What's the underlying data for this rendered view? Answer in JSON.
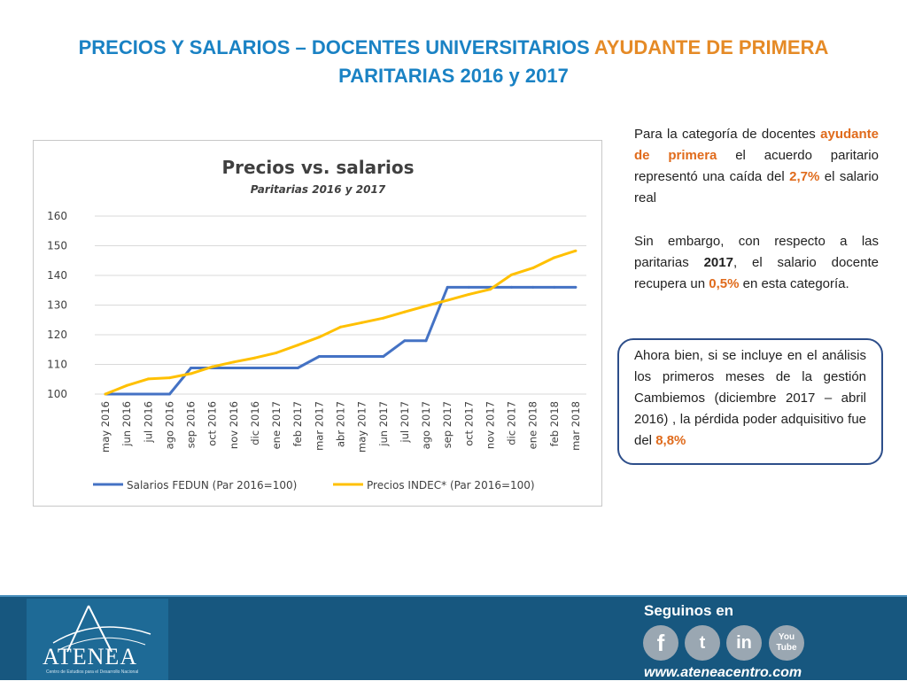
{
  "slide": {
    "title_main": "PRECIOS Y SALARIOS – DOCENTES UNIVERSITARIOS",
    "title_accent": "AYUDANTE DE PRIMERA",
    "title_line2": "PARITARIAS 2016 y 2017"
  },
  "paragraph1": {
    "t1": "Para la categoría de docentes",
    "t2": "ayudante de primera",
    "t3": "el acuerdo paritario representó una caída del",
    "t4": "2,7%",
    "t5": "el salario real"
  },
  "paragraph2": {
    "t1": "Sin embargo, con respecto a las paritarias",
    "t2": "2017",
    "t3": ", el salario docente recupera un",
    "t4": "0,5%",
    "t5": "en esta categoría."
  },
  "callout": {
    "t1": "Ahora bien, si se incluye en el análisis los primeros meses de la gestión Cambiemos (diciembre 2017 – abril 2016) , la pérdida poder adquisitivo fue del",
    "t2": "8,8%"
  },
  "footer": {
    "logo_text": "ATENEA",
    "logo_subtitle": "Centro de Estudios para el Desarrollo Nacional",
    "follow_label": "Seguinos en",
    "social_fb": "f",
    "social_tw": "t",
    "social_in": "in",
    "social_yt_1": "You",
    "social_yt_2": "Tube",
    "website": "www.ateneacentro.com"
  },
  "colors": {
    "title_blue": "#1a82c4",
    "title_orange": "#e58a26",
    "salarios_line": "#4472c4",
    "precios_line": "#ffc000",
    "footer_bg": "#17577f"
  },
  "chart_data": {
    "type": "line",
    "title": "Precios vs. salarios",
    "subtitle": "Paritarias 2016 y 2017",
    "categories": [
      "may 2016",
      "jun 2016",
      "jul 2016",
      "ago 2016",
      "sep 2016",
      "oct 2016",
      "nov 2016",
      "dic 2016",
      "ene 2017",
      "feb 2017",
      "mar 2017",
      "abr 2017",
      "may 2017",
      "jun 2017",
      "jul 2017",
      "ago 2017",
      "sep 2017",
      "oct 2017",
      "nov 2017",
      "dic 2017",
      "ene 2018",
      "feb 2018",
      "mar 2018"
    ],
    "yticks": [
      100,
      110,
      120,
      130,
      140,
      150,
      160
    ],
    "ylim": [
      100,
      160
    ],
    "grid": true,
    "legend_position": "bottom",
    "series": [
      {
        "name": "Salarios FEDUN (Par 2016=100)",
        "color": "#4472c4",
        "values": [
          100,
          100,
          100,
          100,
          108.8,
          108.8,
          108.8,
          108.8,
          108.8,
          108.8,
          112.7,
          112.7,
          112.7,
          112.7,
          118,
          118,
          136,
          136,
          136,
          136,
          136,
          136,
          136
        ]
      },
      {
        "name": "Precios INDEC* (Par 2016=100)",
        "color": "#ffc000",
        "values": [
          100,
          102.9,
          105.1,
          105.5,
          106.9,
          109.2,
          110.8,
          112.2,
          113.9,
          116.5,
          119.2,
          122.6,
          124.1,
          125.6,
          127.7,
          129.7,
          131.6,
          133.6,
          135.3,
          140.2,
          142.5,
          146,
          148.3
        ]
      }
    ]
  }
}
